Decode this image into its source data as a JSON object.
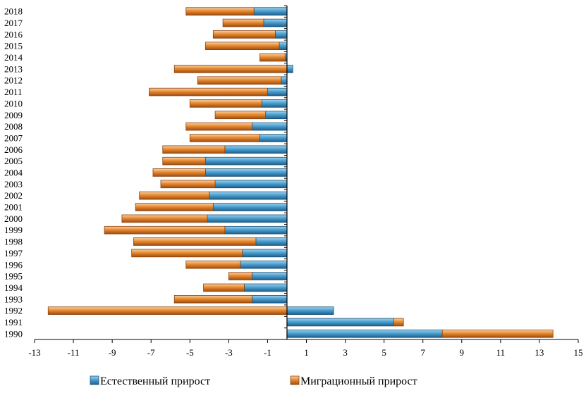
{
  "chart_data": {
    "type": "bar",
    "orientation": "horizontal",
    "stacked": true,
    "title": "",
    "xlabel": "",
    "ylabel": "",
    "xlim": [
      -13,
      15
    ],
    "x_ticks": [
      -13,
      -11,
      -9,
      -7,
      -5,
      -3,
      -1,
      1,
      3,
      5,
      7,
      9,
      11,
      13,
      15
    ],
    "grid": false,
    "legend_position": "bottom",
    "categories": [
      "1990",
      "1991",
      "1992",
      "1993",
      "1994",
      "1995",
      "1996",
      "1997",
      "1998",
      "1999",
      "2000",
      "2001",
      "2002",
      "2003",
      "2004",
      "2005",
      "2006",
      "2007",
      "2008",
      "2009",
      "2010",
      "2011",
      "2012",
      "2013",
      "2014",
      "2015",
      "2016",
      "2017",
      "2018"
    ],
    "series": [
      {
        "name": "Естественный прирост",
        "color": "#4A9FD0",
        "values": [
          8.0,
          5.5,
          2.4,
          -1.8,
          -2.2,
          -1.8,
          -2.4,
          -2.3,
          -1.6,
          -3.2,
          -4.1,
          -3.8,
          -4.0,
          -3.7,
          -4.2,
          -4.2,
          -3.2,
          -1.4,
          -1.8,
          -1.1,
          -1.3,
          -1.0,
          -0.3,
          0.3,
          -0.1,
          -0.4,
          -0.6,
          -1.2,
          -1.7
        ]
      },
      {
        "name": "Миграционный прирост",
        "color": "#E8892E",
        "values": [
          5.7,
          0.5,
          -12.3,
          -4.0,
          -2.1,
          -1.2,
          -2.8,
          -5.7,
          -6.3,
          -6.2,
          -4.4,
          -4.0,
          -3.6,
          -2.8,
          -2.7,
          -2.2,
          -3.2,
          -3.6,
          -3.4,
          -2.6,
          -3.7,
          -6.1,
          -4.3,
          -5.8,
          -1.3,
          -3.8,
          -3.2,
          -2.1,
          -3.5
        ]
      }
    ]
  }
}
